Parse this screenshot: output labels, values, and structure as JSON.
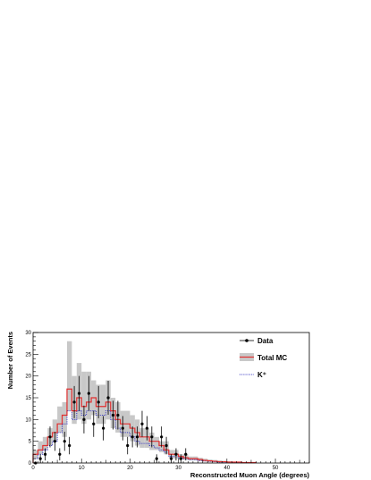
{
  "chart_data": {
    "type": "histogram",
    "xlabel": "Reconstructed Muon Angle (degrees)",
    "ylabel": "Number of Events",
    "xlim": [
      0,
      57
    ],
    "ylim": [
      0,
      30
    ],
    "x_ticks": [
      0,
      10,
      20,
      30,
      40,
      50
    ],
    "y_ticks": [
      0,
      5,
      10,
      15,
      20,
      25,
      30
    ],
    "grid": false,
    "legend_position": "top-right",
    "bin_width": 1,
    "bin_edges_start": 0,
    "series": [
      {
        "name": "Data",
        "kind": "points-with-errors",
        "color": "#000000",
        "points": [
          {
            "x": 0.5,
            "y": 0,
            "err": 0
          },
          {
            "x": 1.5,
            "y": 1,
            "err": 1
          },
          {
            "x": 2.5,
            "y": 2,
            "err": 1.4
          },
          {
            "x": 3.5,
            "y": 6,
            "err": 2.4
          },
          {
            "x": 4.5,
            "y": 5,
            "err": 2.2
          },
          {
            "x": 5.5,
            "y": 2,
            "err": 1.4
          },
          {
            "x": 6.5,
            "y": 5,
            "err": 2.2
          },
          {
            "x": 7.5,
            "y": 4,
            "err": 2
          },
          {
            "x": 8.5,
            "y": 14,
            "err": 3.7
          },
          {
            "x": 9.5,
            "y": 16,
            "err": 4
          },
          {
            "x": 10.5,
            "y": 10,
            "err": 3.2
          },
          {
            "x": 11.5,
            "y": 16,
            "err": 4
          },
          {
            "x": 12.5,
            "y": 9,
            "err": 3
          },
          {
            "x": 13.5,
            "y": 14,
            "err": 3.7
          },
          {
            "x": 14.5,
            "y": 8,
            "err": 2.8
          },
          {
            "x": 15.5,
            "y": 15,
            "err": 3.9
          },
          {
            "x": 16.5,
            "y": 11,
            "err": 3.3
          },
          {
            "x": 17.5,
            "y": 11,
            "err": 3.3
          },
          {
            "x": 18.5,
            "y": 8,
            "err": 2.8
          },
          {
            "x": 19.5,
            "y": 4,
            "err": 2
          },
          {
            "x": 20.5,
            "y": 6,
            "err": 2.4
          },
          {
            "x": 21.5,
            "y": 6,
            "err": 2.4
          },
          {
            "x": 22.5,
            "y": 9,
            "err": 3
          },
          {
            "x": 23.5,
            "y": 8,
            "err": 2.8
          },
          {
            "x": 24.5,
            "y": 6,
            "err": 2.4
          },
          {
            "x": 25.5,
            "y": 1,
            "err": 1
          },
          {
            "x": 26.5,
            "y": 6,
            "err": 2.4
          },
          {
            "x": 27.5,
            "y": 4,
            "err": 2
          },
          {
            "x": 28.5,
            "y": 1,
            "err": 1
          },
          {
            "x": 29.5,
            "y": 2,
            "err": 1.4
          },
          {
            "x": 30.5,
            "y": 1,
            "err": 1
          },
          {
            "x": 31.5,
            "y": 2,
            "err": 1.4
          }
        ]
      },
      {
        "name": "Total MC",
        "kind": "step-with-band",
        "color": "#e03030",
        "band_color": "#c8c8c8",
        "values": [
          2,
          3,
          4,
          6,
          7,
          9,
          11,
          17,
          12,
          15,
          13,
          14,
          15,
          13,
          13,
          14,
          12,
          10,
          9,
          9,
          8,
          7,
          6,
          6,
          5,
          5,
          4,
          3,
          2,
          2,
          1.5,
          1.2,
          1,
          1,
          0.8,
          0.6,
          0.5,
          0.4,
          0.3,
          0.3,
          0.2,
          0.2,
          0.2,
          0.1,
          0.1,
          0.1
        ],
        "band_low": [
          1,
          2,
          3,
          4,
          5,
          7,
          6,
          12,
          9,
          10,
          9,
          10,
          11,
          9,
          9,
          10,
          8,
          7,
          6,
          6,
          5,
          4,
          3.5,
          3.5,
          3,
          3,
          2.5,
          2,
          1,
          1,
          0.8,
          0.7,
          0.6,
          0.6,
          0.4,
          0.3,
          0.2,
          0.2,
          0.1,
          0.1,
          0.1,
          0.1,
          0.1,
          0,
          0,
          0
        ],
        "band_high": [
          3,
          5,
          6,
          8,
          10,
          13,
          14,
          28,
          20,
          23,
          21,
          21,
          19,
          18,
          18,
          19,
          15,
          14,
          12,
          12,
          11,
          10,
          8,
          8,
          7,
          6,
          5,
          5,
          3,
          3,
          2,
          2,
          1.5,
          1.5,
          1.2,
          1,
          0.8,
          0.7,
          0.6,
          0.5,
          0.4,
          0.3,
          0.3,
          0.2,
          0.2,
          0.2
        ]
      },
      {
        "name": "K⁺",
        "kind": "step-dotted",
        "color": "#3030c0",
        "values": [
          1,
          2,
          3,
          4,
          5,
          7,
          9,
          12,
          10,
          12,
          11,
          12,
          12,
          11,
          11,
          12,
          10,
          8,
          7,
          7,
          6,
          5,
          4.5,
          4.5,
          4,
          3.5,
          3,
          2.5,
          1.5,
          1.5,
          1.2,
          1,
          0.8,
          0.8,
          0.6,
          0.5,
          0.4,
          0.3,
          0.2,
          0.2,
          0.2,
          0.1,
          0.1,
          0.1,
          0.1,
          0.1
        ]
      }
    ]
  }
}
